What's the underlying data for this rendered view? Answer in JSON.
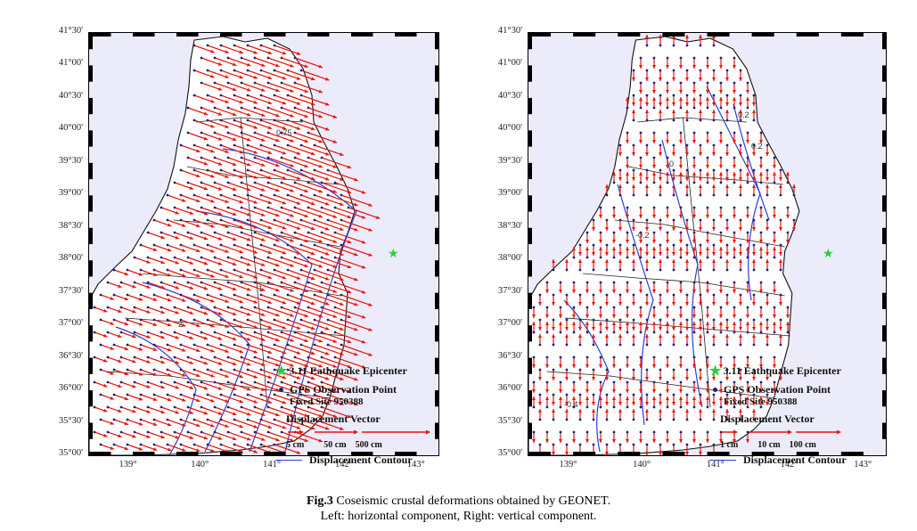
{
  "figure": {
    "caption_label": "Fig.3",
    "caption_line1": " Coseismic crustal deformations obtained by GEONET.",
    "caption_line2": "Left: horizontal component, Right: vertical component."
  },
  "axes": {
    "lat_labels": [
      "41°30'",
      "41°00'",
      "40°30'",
      "40°00'",
      "39°30'",
      "39°00'",
      "38°30'",
      "38°00'",
      "37°30'",
      "37°00'",
      "36°30'",
      "36°00'",
      "35°30'",
      "35°00'"
    ],
    "lon_labels": [
      "139°",
      "140°",
      "141°",
      "142°",
      "143°"
    ]
  },
  "colors": {
    "vector": "#e8140c",
    "station": "#1a237e",
    "contour": "#2a3fd6",
    "epicenter": "#2ecc40",
    "sea": "#ecebfa",
    "land": "#ffffff"
  },
  "left_panel": {
    "component": "horizontal",
    "contour_labels": [
      "0.75",
      "1",
      "2"
    ],
    "legend": {
      "epicenter": "3.11 Eathquake Epicenter",
      "gps_line1": "GPS Observation Point",
      "gps_line2": "Fixed Site 950388",
      "vector_title": "Displacement Vector",
      "scales": [
        "5 cm",
        "50 cm",
        "500 cm"
      ],
      "contour": "Displacement Contour"
    }
  },
  "right_panel": {
    "component": "vertical",
    "contour_labels": [
      "0.2",
      "0",
      "-0.2",
      "-0.4",
      "0.2"
    ],
    "legend": {
      "epicenter": "3.11 Eathquake Epicenter",
      "gps_line1": "GPS Observation Point",
      "gps_line2": "Fixed Site 950388",
      "vector_title": "Displacement Vector",
      "scales": [
        "1 cm",
        "10 cm",
        "100 cm"
      ],
      "contour": "Displacement Contour"
    }
  }
}
